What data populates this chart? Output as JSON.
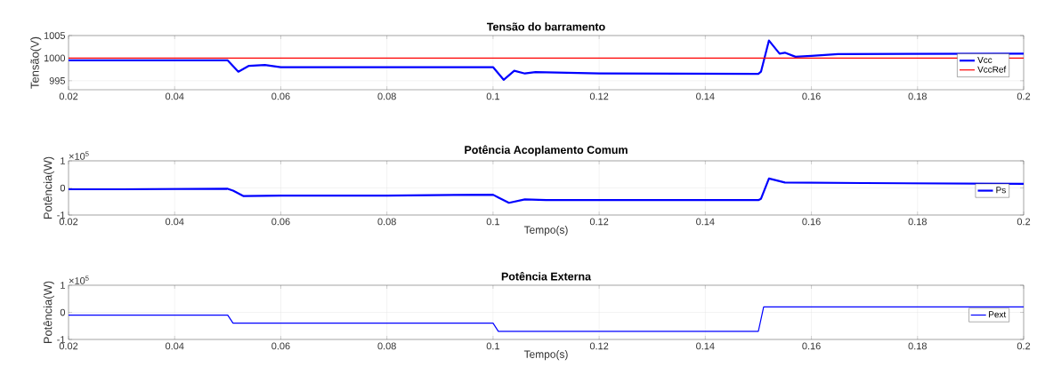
{
  "chart_data": [
    {
      "type": "line",
      "title": "Tensão do barramento",
      "ylabel": "Tensão(V)",
      "xlim": [
        0.02,
        0.2
      ],
      "ylim": [
        993,
        1005
      ],
      "xticks": [
        0.02,
        0.04,
        0.06,
        0.08,
        0.1,
        0.12,
        0.14,
        0.16,
        0.18,
        0.2
      ],
      "yticks": [
        995,
        1000,
        1005
      ],
      "grid": true,
      "legend": "right",
      "series": [
        {
          "name": "Vcc",
          "color": "#0000ff",
          "x": [
            0.02,
            0.03,
            0.05,
            0.052,
            0.054,
            0.057,
            0.06,
            0.08,
            0.1,
            0.102,
            0.104,
            0.106,
            0.108,
            0.12,
            0.15,
            0.1505,
            0.152,
            0.154,
            0.155,
            0.157,
            0.16,
            0.165,
            0.2
          ],
          "values": [
            999.5,
            999.5,
            999.5,
            997,
            998.3,
            998.5,
            998,
            998,
            998,
            995.2,
            997.2,
            996.6,
            996.9,
            996.6,
            996.5,
            997,
            1003.9,
            1001,
            1001.2,
            1000.3,
            1000.5,
            1000.9,
            1001
          ]
        },
        {
          "name": "VccRef",
          "color": "#ff0000",
          "x": [
            0.02,
            0.2
          ],
          "values": [
            1000,
            1000
          ]
        }
      ]
    },
    {
      "type": "line",
      "title": "Potência Acoplamento Comum",
      "xlabel": "Tempo(s)",
      "ylabel": "Potência(W)",
      "annotations": [
        "×10$^{5}$"
      ],
      "xlim": [
        0.02,
        0.2
      ],
      "ylim": [
        -1,
        1
      ],
      "xticks": [
        0.02,
        0.04,
        0.06,
        0.08,
        0.1,
        0.12,
        0.14,
        0.16,
        0.18,
        0.2
      ],
      "yticks": [
        -1,
        0,
        1
      ],
      "grid": true,
      "legend": "right",
      "series": [
        {
          "name": "Ps",
          "color": "#0000ff",
          "x": [
            0.02,
            0.03,
            0.05,
            0.051,
            0.053,
            0.06,
            0.08,
            0.1,
            0.101,
            0.103,
            0.106,
            0.11,
            0.13,
            0.15,
            0.1505,
            0.152,
            0.155,
            0.17,
            0.2
          ],
          "values": [
            -0.05,
            -0.05,
            -0.03,
            -0.1,
            -0.3,
            -0.28,
            -0.28,
            -0.25,
            -0.35,
            -0.55,
            -0.42,
            -0.45,
            -0.45,
            -0.45,
            -0.4,
            0.35,
            0.2,
            0.18,
            0.15
          ]
        }
      ]
    },
    {
      "type": "line",
      "title": "Potência Externa",
      "xlabel": "Tempo(s)",
      "ylabel": "Potência(W)",
      "annotations": [
        "×10$^{5}$"
      ],
      "xlim": [
        0.02,
        0.2
      ],
      "ylim": [
        -1,
        1
      ],
      "xticks": [
        0.02,
        0.04,
        0.06,
        0.08,
        0.1,
        0.12,
        0.14,
        0.16,
        0.18,
        0.2
      ],
      "yticks": [
        -1,
        0,
        1
      ],
      "grid": true,
      "legend": "right",
      "series": [
        {
          "name": "Pext",
          "color": "#0000ff",
          "x": [
            0.02,
            0.05,
            0.051,
            0.1,
            0.101,
            0.15,
            0.151,
            0.2
          ],
          "values": [
            -0.1,
            -0.1,
            -0.4,
            -0.4,
            -0.7,
            -0.7,
            0.2,
            0.2
          ]
        }
      ]
    }
  ]
}
